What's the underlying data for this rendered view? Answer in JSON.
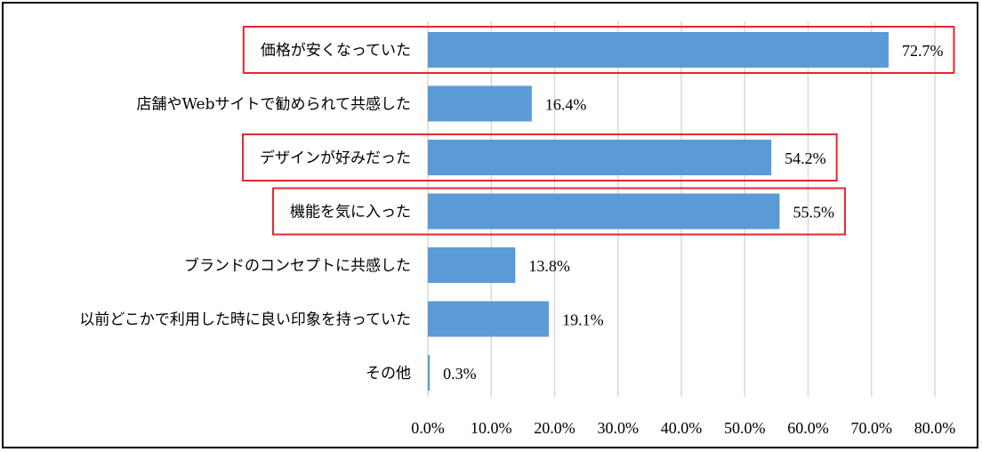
{
  "chart_data": {
    "type": "bar",
    "orientation": "horizontal",
    "categories": [
      "価格が安くなっていた",
      "店舗やWebサイトで勧められて共感した",
      "デザインが好みだった",
      "機能を気に入った",
      "ブランドのコンセプトに共感した",
      "以前どこかで利用した時に良い印象を持っていた",
      "その他"
    ],
    "values": [
      72.7,
      16.4,
      54.2,
      55.5,
      13.8,
      19.1,
      0.3
    ],
    "value_labels": [
      "72.7%",
      "16.4%",
      "54.2%",
      "55.5%",
      "13.8%",
      "19.1%",
      "0.3%"
    ],
    "xlim": [
      0,
      80
    ],
    "xticks": [
      "0.0%",
      "10.0%",
      "20.0%",
      "30.0%",
      "40.0%",
      "50.0%",
      "60.0%",
      "70.0%",
      "80.0%"
    ],
    "highlighted": [
      0,
      2,
      3
    ],
    "grid": true,
    "title": "",
    "xlabel": "",
    "ylabel": ""
  },
  "colors": {
    "bar": "#5b9bd5",
    "grid": "#d9d9d9",
    "highlight": "#e8262e"
  }
}
